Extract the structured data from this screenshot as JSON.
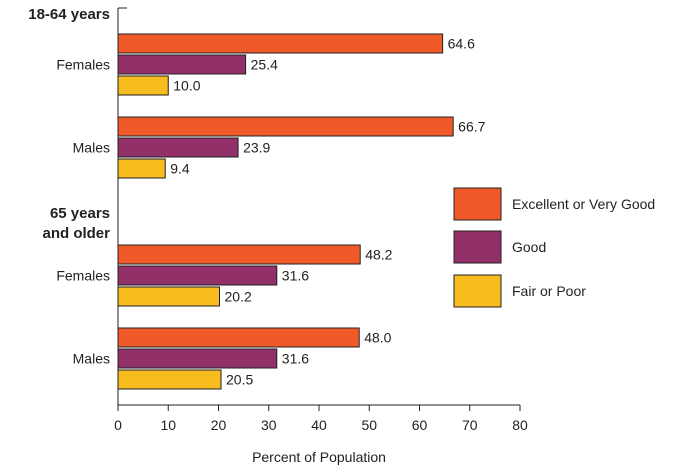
{
  "chart_data": {
    "type": "bar",
    "orientation": "horizontal",
    "xlabel": "Percent of Population",
    "xlim": [
      0,
      80
    ],
    "xticks": [
      0,
      10,
      20,
      30,
      40,
      50,
      60,
      70,
      80
    ],
    "grid": false,
    "legend_position": "right",
    "groups": [
      {
        "label": "18-64 years",
        "categories": [
          {
            "name": "Females",
            "values": [
              64.6,
              25.4,
              10.0
            ],
            "labels": [
              "64.6",
              "25.4",
              "10.0"
            ]
          },
          {
            "name": "Males",
            "values": [
              66.7,
              23.9,
              9.4
            ],
            "labels": [
              "66.7",
              "23.9",
              "9.4"
            ]
          }
        ]
      },
      {
        "label": [
          "65 years",
          "and older"
        ],
        "categories": [
          {
            "name": "Females",
            "values": [
              48.2,
              31.6,
              20.2
            ],
            "labels": [
              "48.2",
              "31.6",
              "20.2"
            ]
          },
          {
            "name": "Males",
            "values": [
              48.0,
              31.6,
              20.5
            ],
            "labels": [
              "48.0",
              "31.6",
              "20.5"
            ]
          }
        ]
      }
    ],
    "series": [
      {
        "name": "Excellent or Very Good",
        "color": "#f05a28"
      },
      {
        "name": "Good",
        "color": "#92306a"
      },
      {
        "name": "Fair or Poor",
        "color": "#f7bc1e"
      }
    ]
  }
}
